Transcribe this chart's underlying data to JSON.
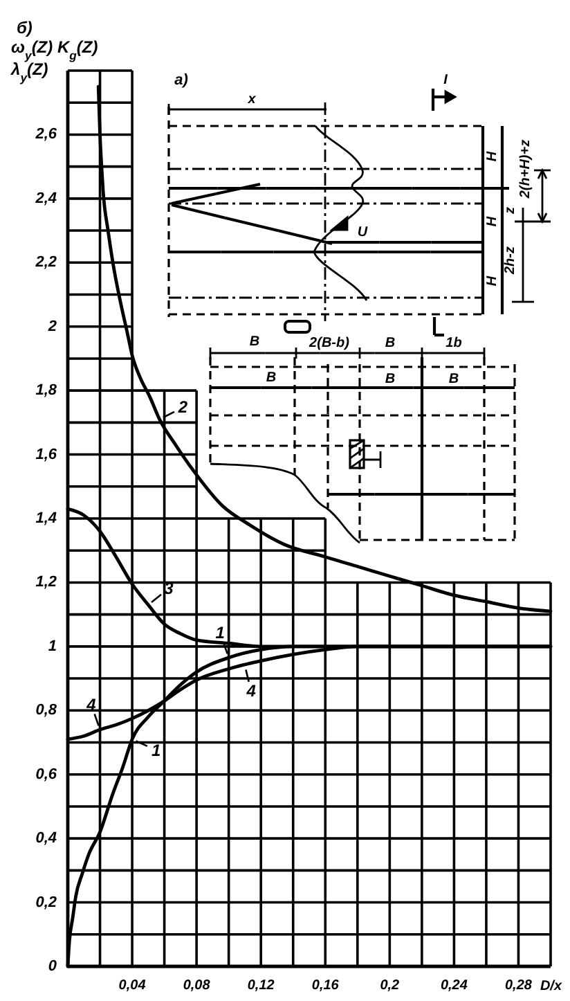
{
  "chart_data": {
    "type": "line",
    "title": "б)",
    "xlabel": "D/x",
    "ylabel": "ω$_{y}$(Z)  K$_{g}$(Z)\nλ$_{y}$(Z)",
    "xlim": [
      0,
      0.3
    ],
    "ylim": [
      0,
      2.8
    ],
    "xticks": [
      {
        "value": 0.02,
        "label": null
      },
      {
        "value": 0.04,
        "label": "0,04"
      },
      {
        "value": 0.06,
        "label": null
      },
      {
        "value": 0.08,
        "label": "0,08"
      },
      {
        "value": 0.1,
        "label": null
      },
      {
        "value": 0.12,
        "label": "0,12"
      },
      {
        "value": 0.14,
        "label": null
      },
      {
        "value": 0.16,
        "label": "0,16"
      },
      {
        "value": 0.18,
        "label": null
      },
      {
        "value": 0.2,
        "label": "0,2"
      },
      {
        "value": 0.22,
        "label": null
      },
      {
        "value": 0.24,
        "label": "0,24"
      },
      {
        "value": 0.26,
        "label": null
      },
      {
        "value": 0.28,
        "label": "0,28"
      }
    ],
    "yticks": [
      0,
      {
        "value": 0.1,
        "label": null
      },
      {
        "value": 0.2,
        "label": "0,2"
      },
      {
        "value": 0.3,
        "label": null
      },
      {
        "value": 0.4,
        "label": "0,4"
      },
      {
        "value": 0.5,
        "label": null
      },
      {
        "value": 0.6,
        "label": "0,6"
      },
      {
        "value": 0.7,
        "label": null
      },
      {
        "value": 0.8,
        "label": "0,8"
      },
      {
        "value": 0.9,
        "label": null
      },
      1,
      {
        "value": 1.1,
        "label": null
      },
      {
        "value": 1.2,
        "label": "1,2"
      },
      {
        "value": 1.3,
        "label": null
      },
      {
        "value": 1.4,
        "label": "1,4"
      },
      {
        "value": 1.5,
        "label": null
      },
      {
        "value": 1.6,
        "label": "1,6"
      },
      {
        "value": 1.7,
        "label": null
      },
      {
        "value": 1.8,
        "label": "1,8"
      },
      {
        "value": 1.9,
        "label": null
      },
      2,
      {
        "value": 2.1,
        "label": null
      },
      {
        "value": 2.2,
        "label": "2,2"
      },
      {
        "value": 2.3,
        "label": null
      },
      {
        "value": 2.4,
        "label": "2,4"
      },
      {
        "value": 2.5,
        "label": null
      },
      {
        "value": 2.6,
        "label": "2,6"
      },
      {
        "value": 2.7,
        "label": null
      }
    ],
    "grid": true,
    "series": [
      {
        "color": "#000000",
        "x": [
          0,
          0.001,
          0.003,
          0.005,
          0.009,
          0.013,
          0.02,
          0.028,
          0.034,
          0.04,
          0.05,
          0.06,
          0.07,
          0.08,
          0.1,
          0.12,
          0.14,
          0.3
        ],
        "values": [
          0,
          0.08,
          0.15,
          0.22,
          0.29,
          0.35,
          0.42,
          0.54,
          0.62,
          0.71,
          0.78,
          0.83,
          0.88,
          0.92,
          0.965,
          0.99,
          1,
          1
        ]
      },
      {
        "color": "#000000",
        "x": [
          0.019,
          0.02,
          0.021,
          0.022,
          0.025,
          0.028,
          0.033,
          0.037,
          0.04,
          0.045,
          0.051,
          0.057,
          0.067,
          0.078,
          0.096,
          0.113,
          0.134,
          0.16,
          0.18,
          0.2,
          0.22,
          0.24,
          0.26,
          0.28,
          0.3
        ],
        "values": [
          2.75,
          2.6,
          2.5,
          2.42,
          2.3,
          2.2,
          2.07,
          1.98,
          1.91,
          1.84,
          1.78,
          1.71,
          1.63,
          1.55,
          1.44,
          1.38,
          1.32,
          1.28,
          1.25,
          1.22,
          1.19,
          1.16,
          1.14,
          1.12,
          1.11
        ]
      },
      {
        "color": "#000000",
        "x": [
          0,
          0.01,
          0.02,
          0.03,
          0.04,
          0.05,
          0.06,
          0.07,
          0.08,
          0.1,
          0.12,
          0.3
        ],
        "values": [
          1.43,
          1.41,
          1.36,
          1.28,
          1.195,
          1.13,
          1.07,
          1.04,
          1.02,
          1.01,
          1,
          1
        ]
      },
      {
        "color": "#000000",
        "x": [
          0,
          0.01,
          0.02,
          0.03,
          0.04,
          0.05,
          0.06,
          0.07,
          0.08,
          0.1,
          0.12,
          0.14,
          0.16,
          0.18,
          0.2,
          0.3
        ],
        "values": [
          0.71,
          0.72,
          0.74,
          0.755,
          0.775,
          0.8,
          0.83,
          0.865,
          0.895,
          0.93,
          0.955,
          0.975,
          0.99,
          1,
          1,
          1
        ]
      }
    ],
    "annotations": [
      {
        "text": "4",
        "x": 0.02,
        "y": 0.74
      },
      {
        "text": "1",
        "x": 0.04,
        "y": 0.71
      },
      {
        "text": "2",
        "x": 0.057,
        "y": 1.71
      },
      {
        "text": "3",
        "x": 0.05,
        "y": 1.13
      },
      {
        "text": "1",
        "x": 0.1,
        "y": 0.965
      },
      {
        "text": "4",
        "x": 0.11,
        "y": 0.94
      },
      "а)",
      "x",
      "I",
      "U",
      "H",
      "H",
      "H",
      "2(h+H)+z",
      "z",
      "2h-z",
      "B",
      "2(B-b)",
      "B",
      "1b",
      "B",
      "B",
      "B"
    ]
  }
}
